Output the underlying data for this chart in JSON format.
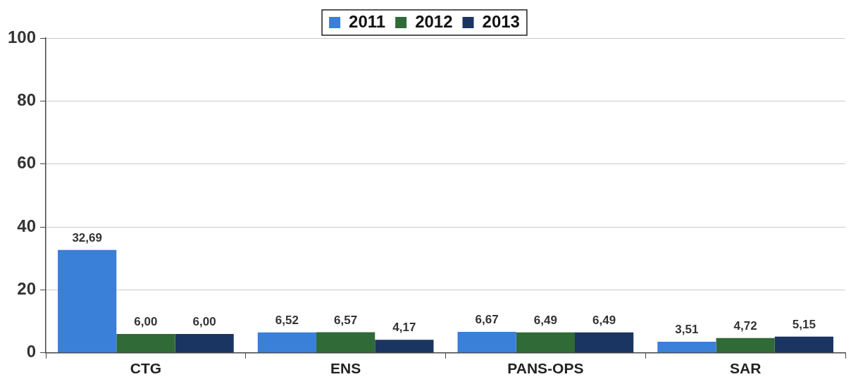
{
  "chart_data": {
    "type": "bar",
    "categories": [
      "CTG",
      "ENS",
      "PANS-OPS",
      "SAR"
    ],
    "series": [
      {
        "name": "2011",
        "color": "#3a7fd8",
        "values": [
          32.69,
          6.52,
          6.67,
          3.51
        ],
        "value_labels": [
          "32,69",
          "6,52",
          "6,67",
          "3,51"
        ]
      },
      {
        "name": "2012",
        "color": "#2f6a37",
        "values": [
          6.0,
          6.57,
          6.49,
          4.72
        ],
        "value_labels": [
          "6,00",
          "6,57",
          "6,49",
          "4,72"
        ]
      },
      {
        "name": "2013",
        "color": "#1b3562",
        "values": [
          6.0,
          4.17,
          6.49,
          5.15
        ],
        "value_labels": [
          "6,00",
          "4,17",
          "6,49",
          "5,15"
        ]
      }
    ],
    "ylim": [
      0,
      100
    ],
    "yticks": [
      0,
      20,
      40,
      60,
      80,
      100
    ],
    "grid": "y",
    "legend": "top"
  }
}
